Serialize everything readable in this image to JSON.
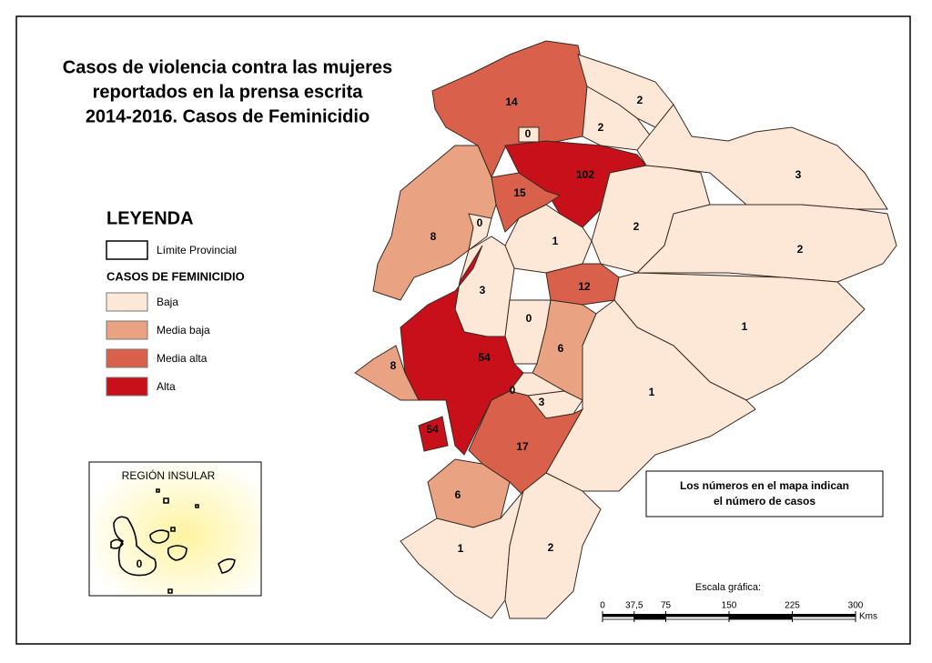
{
  "title": [
    "Casos de violencia contra las mujeres",
    "reportados en la prensa escrita",
    "2014-2016. Casos de Feminicidio"
  ],
  "legend": {
    "heading": "LEYENDA",
    "boundary": "Límite Provincial",
    "category_title": "CASOS DE FEMINICIDIO",
    "classes": [
      {
        "label": "Baja",
        "color": "#fde7d6"
      },
      {
        "label": "Media baja",
        "color": "#e9a382"
      },
      {
        "label": "Media alta",
        "color": "#d9614b"
      },
      {
        "label": "Alta",
        "color": "#c8101a"
      }
    ]
  },
  "provinces": [
    {
      "value": 14,
      "class": 2
    },
    {
      "value": 2,
      "class": 0
    },
    {
      "value": 2,
      "class": 0
    },
    {
      "value": 0,
      "class": 0
    },
    {
      "value": 102,
      "class": 3
    },
    {
      "value": 3,
      "class": 0
    },
    {
      "value": 15,
      "class": 2
    },
    {
      "value": 8,
      "class": 1
    },
    {
      "value": 0,
      "class": 0
    },
    {
      "value": 1,
      "class": 0
    },
    {
      "value": 2,
      "class": 0
    },
    {
      "value": 2,
      "class": 0
    },
    {
      "value": 3,
      "class": 0
    },
    {
      "value": 12,
      "class": 2
    },
    {
      "value": 0,
      "class": 0
    },
    {
      "value": 1,
      "class": 0
    },
    {
      "value": 6,
      "class": 1
    },
    {
      "value": 54,
      "class": 3
    },
    {
      "value": 8,
      "class": 1
    },
    {
      "value": 0,
      "class": 0
    },
    {
      "value": 1,
      "class": 0
    },
    {
      "value": 3,
      "class": 0
    },
    {
      "value": 54,
      "class": 3
    },
    {
      "value": 17,
      "class": 2
    },
    {
      "value": 6,
      "class": 1
    },
    {
      "value": 1,
      "class": 0
    },
    {
      "value": 2,
      "class": 0
    }
  ],
  "inset": {
    "title": "REGIÓN INSULAR",
    "value": 0
  },
  "note": [
    "Los números en el mapa indican",
    "el número de casos"
  ],
  "scale": {
    "title": "Escala gráfica:",
    "ticks": [
      0,
      {
        "value": 37.5,
        "label": "37,5"
      },
      75,
      150,
      225,
      300
    ],
    "unit": "Kms"
  }
}
